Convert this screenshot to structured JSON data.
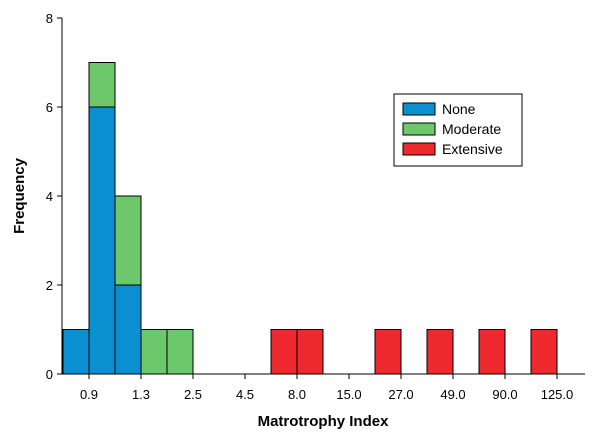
{
  "chart_data": {
    "type": "bar",
    "stacked": true,
    "title": "",
    "xlabel": "Matrotrophy Index",
    "ylabel": "Frequency",
    "ylim": [
      0,
      8
    ],
    "y_ticks": [
      0,
      2,
      4,
      6,
      8
    ],
    "x_tick_labels": [
      "0.9",
      "1.3",
      "2.5",
      "4.5",
      "8.0",
      "15.0",
      "27.0",
      "49.0",
      "90.0",
      "125.0"
    ],
    "bin_count": 19,
    "series": [
      {
        "name": "None",
        "color": "#0a8fd0",
        "values": [
          1,
          6,
          2,
          0,
          0,
          0,
          0,
          0,
          0,
          0,
          0,
          0,
          0,
          0,
          0,
          0,
          0,
          0,
          0
        ]
      },
      {
        "name": "Moderate",
        "color": "#6cc86a",
        "values": [
          0,
          1,
          2,
          1,
          1,
          0,
          0,
          0,
          0,
          0,
          0,
          0,
          0,
          0,
          0,
          0,
          0,
          0,
          0
        ]
      },
      {
        "name": "Extensive",
        "color": "#ee2a2e",
        "values": [
          0,
          0,
          0,
          0,
          0,
          0,
          0,
          0,
          1,
          1,
          0,
          0,
          1,
          0,
          1,
          0,
          1,
          0,
          1
        ]
      }
    ],
    "grid": false,
    "legend_position": "top-right"
  }
}
